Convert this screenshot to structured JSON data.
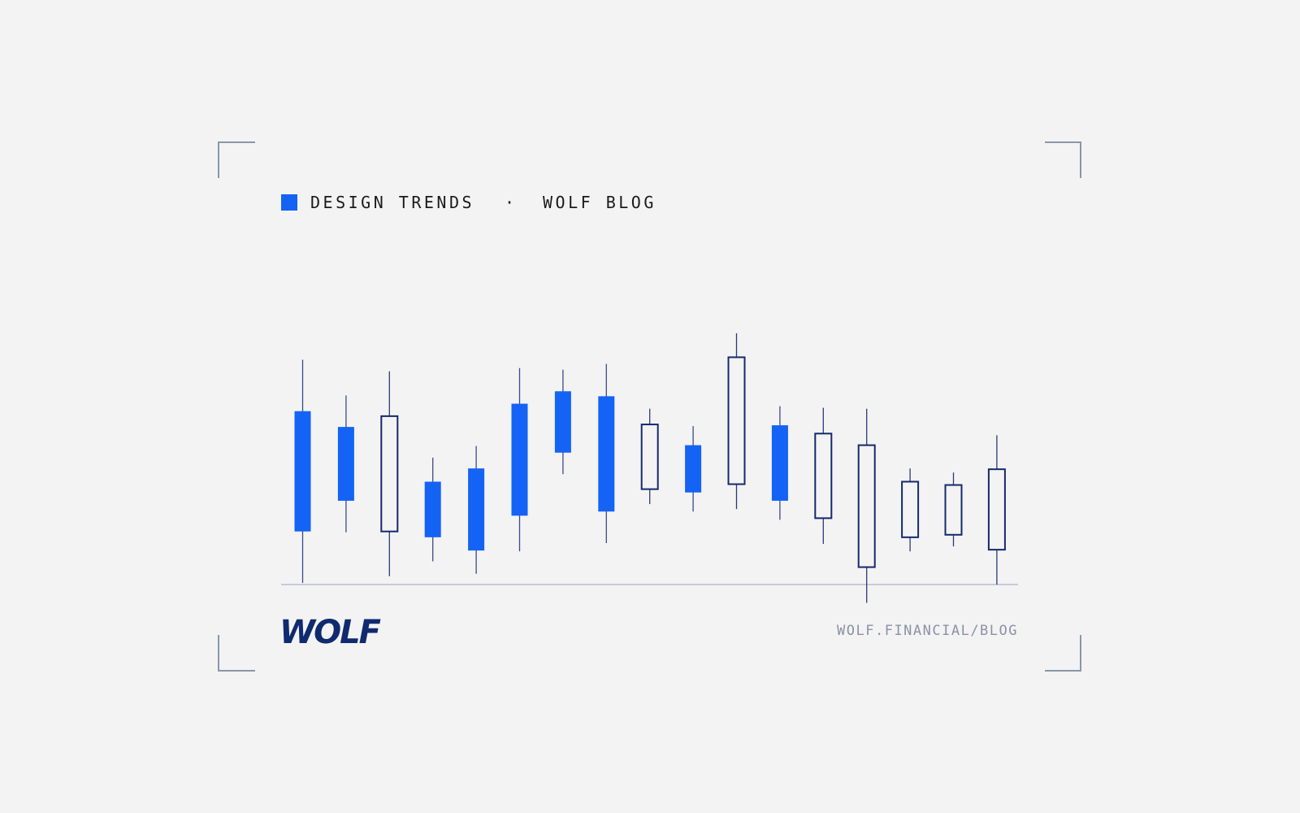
{
  "header": {
    "tag": "DESIGN TRENDS",
    "separator": "·",
    "blog": "WOLF BLOG"
  },
  "chart_data": {
    "type": "candlestick",
    "ylim": [
      -30,
      320
    ],
    "up_color": "#16296b",
    "down_color": "#1463f5",
    "candles": [
      {
        "open": 209,
        "high": 271,
        "low": 2,
        "close": 64
      },
      {
        "open": 190,
        "high": 228,
        "low": 63,
        "close": 101
      },
      {
        "open": 64,
        "high": 257,
        "low": 10,
        "close": 203
      },
      {
        "open": 124,
        "high": 153,
        "low": 28,
        "close": 57
      },
      {
        "open": 140,
        "high": 167,
        "low": 13,
        "close": 41
      },
      {
        "open": 218,
        "high": 261,
        "low": 40,
        "close": 83
      },
      {
        "open": 233,
        "high": 259,
        "low": 133,
        "close": 159
      },
      {
        "open": 227,
        "high": 266,
        "low": 50,
        "close": 88
      },
      {
        "open": 115,
        "high": 212,
        "low": 97,
        "close": 193
      },
      {
        "open": 168,
        "high": 191,
        "low": 88,
        "close": 111
      },
      {
        "open": 121,
        "high": 303,
        "low": 91,
        "close": 274
      },
      {
        "open": 192,
        "high": 215,
        "low": 78,
        "close": 101
      },
      {
        "open": 80,
        "high": 213,
        "low": 49,
        "close": 182
      },
      {
        "open": 21,
        "high": 212,
        "low": -22,
        "close": 168
      },
      {
        "open": 57,
        "high": 140,
        "low": 40,
        "close": 124
      },
      {
        "open": 60,
        "high": 135,
        "low": 46,
        "close": 120
      },
      {
        "open": 42,
        "high": 180,
        "low": 0,
        "close": 139
      }
    ]
  },
  "footer": {
    "logo": "WOLF",
    "url": "WOLF.FINANCIAL/BLOG"
  }
}
